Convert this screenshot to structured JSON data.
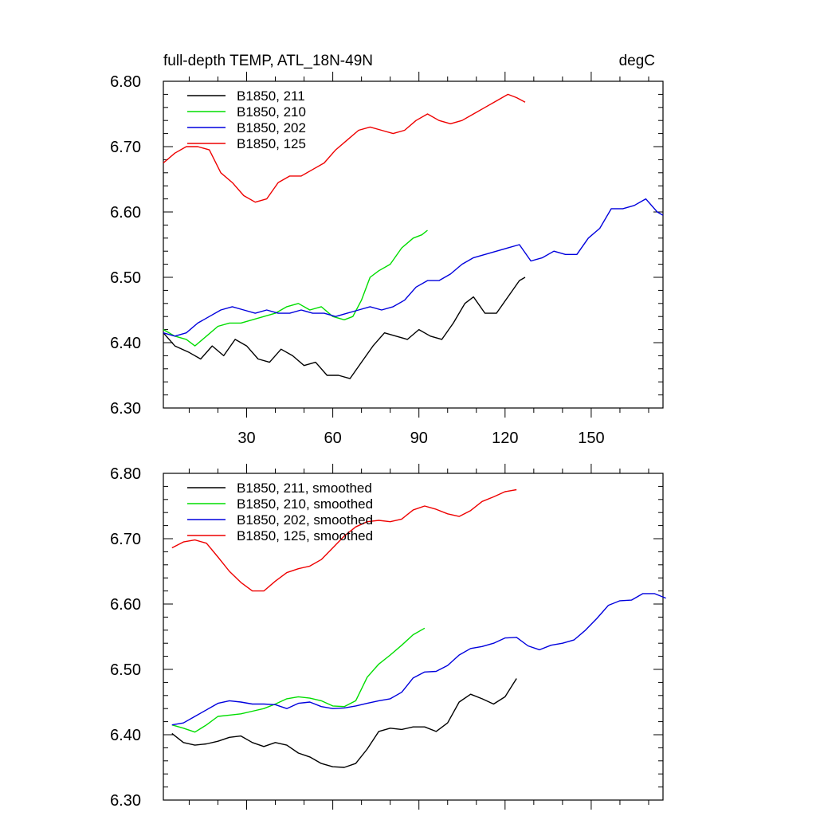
{
  "chart_data": [
    {
      "type": "line",
      "title": "full-depth TEMP, ATL_18N-49N",
      "units_label": "degC",
      "xlim": [
        1,
        175
      ],
      "ylim": [
        6.3,
        6.8
      ],
      "xticks": [
        30,
        60,
        90,
        120,
        150
      ],
      "xtick_labels": [
        "30",
        "60",
        "90",
        "120",
        "150"
      ],
      "yticks": [
        6.3,
        6.4,
        6.5,
        6.6,
        6.7,
        6.8
      ],
      "ytick_labels": [
        "6.30",
        "6.40",
        "6.50",
        "6.60",
        "6.70",
        "6.80"
      ],
      "legend": "top-left",
      "series": [
        {
          "name": "B1850, 211",
          "color": "#000000",
          "points": [
            [
              1,
              6.415
            ],
            [
              5,
              6.395
            ],
            [
              10,
              6.385
            ],
            [
              14,
              6.375
            ],
            [
              18,
              6.395
            ],
            [
              22,
              6.38
            ],
            [
              26,
              6.405
            ],
            [
              30,
              6.395
            ],
            [
              34,
              6.375
            ],
            [
              38,
              6.37
            ],
            [
              42,
              6.39
            ],
            [
              46,
              6.38
            ],
            [
              50,
              6.365
            ],
            [
              54,
              6.37
            ],
            [
              58,
              6.35
            ],
            [
              62,
              6.35
            ],
            [
              66,
              6.345
            ],
            [
              70,
              6.37
            ],
            [
              74,
              6.395
            ],
            [
              78,
              6.415
            ],
            [
              82,
              6.41
            ],
            [
              86,
              6.405
            ],
            [
              90,
              6.42
            ],
            [
              94,
              6.41
            ],
            [
              98,
              6.405
            ],
            [
              102,
              6.43
            ],
            [
              106,
              6.46
            ],
            [
              109,
              6.47
            ],
            [
              113,
              6.445
            ],
            [
              117,
              6.445
            ],
            [
              121,
              6.47
            ],
            [
              125,
              6.495
            ],
            [
              127,
              6.5
            ]
          ]
        },
        {
          "name": "B1850, 210",
          "color": "#00dd00",
          "points": [
            [
              1,
              6.42
            ],
            [
              5,
              6.41
            ],
            [
              9,
              6.405
            ],
            [
              12,
              6.395
            ],
            [
              16,
              6.41
            ],
            [
              20,
              6.425
            ],
            [
              24,
              6.43
            ],
            [
              28,
              6.43
            ],
            [
              32,
              6.435
            ],
            [
              36,
              6.44
            ],
            [
              40,
              6.445
            ],
            [
              44,
              6.455
            ],
            [
              48,
              6.46
            ],
            [
              52,
              6.45
            ],
            [
              56,
              6.455
            ],
            [
              60,
              6.44
            ],
            [
              64,
              6.435
            ],
            [
              67,
              6.44
            ],
            [
              70,
              6.465
            ],
            [
              73,
              6.5
            ],
            [
              76,
              6.51
            ],
            [
              80,
              6.52
            ],
            [
              84,
              6.545
            ],
            [
              88,
              6.56
            ],
            [
              91,
              6.565
            ],
            [
              93,
              6.572
            ]
          ]
        },
        {
          "name": "B1850, 202",
          "color": "#0000dd",
          "points": [
            [
              1,
              6.415
            ],
            [
              5,
              6.41
            ],
            [
              9,
              6.415
            ],
            [
              13,
              6.43
            ],
            [
              17,
              6.44
            ],
            [
              21,
              6.45
            ],
            [
              25,
              6.455
            ],
            [
              29,
              6.45
            ],
            [
              33,
              6.445
            ],
            [
              37,
              6.45
            ],
            [
              41,
              6.445
            ],
            [
              45,
              6.445
            ],
            [
              49,
              6.45
            ],
            [
              53,
              6.445
            ],
            [
              57,
              6.445
            ],
            [
              61,
              6.44
            ],
            [
              65,
              6.445
            ],
            [
              69,
              6.45
            ],
            [
              73,
              6.455
            ],
            [
              77,
              6.45
            ],
            [
              81,
              6.455
            ],
            [
              85,
              6.465
            ],
            [
              89,
              6.485
            ],
            [
              93,
              6.495
            ],
            [
              97,
              6.495
            ],
            [
              101,
              6.505
            ],
            [
              105,
              6.52
            ],
            [
              109,
              6.53
            ],
            [
              113,
              6.535
            ],
            [
              117,
              6.54
            ],
            [
              121,
              6.545
            ],
            [
              125,
              6.55
            ],
            [
              129,
              6.525
            ],
            [
              133,
              6.53
            ],
            [
              137,
              6.54
            ],
            [
              141,
              6.535
            ],
            [
              145,
              6.535
            ],
            [
              149,
              6.56
            ],
            [
              153,
              6.575
            ],
            [
              157,
              6.605
            ],
            [
              161,
              6.605
            ],
            [
              165,
              6.61
            ],
            [
              169,
              6.62
            ],
            [
              173,
              6.6
            ],
            [
              175,
              6.595
            ]
          ]
        },
        {
          "name": "B1850, 125",
          "color": "#ee0000",
          "points": [
            [
              1,
              6.675
            ],
            [
              5,
              6.69
            ],
            [
              9,
              6.7
            ],
            [
              13,
              6.7
            ],
            [
              17,
              6.695
            ],
            [
              21,
              6.66
            ],
            [
              25,
              6.645
            ],
            [
              29,
              6.625
            ],
            [
              33,
              6.615
            ],
            [
              37,
              6.62
            ],
            [
              41,
              6.645
            ],
            [
              45,
              6.655
            ],
            [
              49,
              6.655
            ],
            [
              53,
              6.665
            ],
            [
              57,
              6.675
            ],
            [
              61,
              6.695
            ],
            [
              65,
              6.71
            ],
            [
              69,
              6.725
            ],
            [
              73,
              6.73
            ],
            [
              77,
              6.725
            ],
            [
              81,
              6.72
            ],
            [
              85,
              6.725
            ],
            [
              89,
              6.74
            ],
            [
              93,
              6.75
            ],
            [
              97,
              6.74
            ],
            [
              101,
              6.735
            ],
            [
              105,
              6.74
            ],
            [
              109,
              6.75
            ],
            [
              113,
              6.76
            ],
            [
              117,
              6.77
            ],
            [
              121,
              6.78
            ],
            [
              124,
              6.775
            ],
            [
              127,
              6.768
            ]
          ]
        }
      ]
    },
    {
      "type": "line",
      "xlim": [
        1,
        175
      ],
      "ylim": [
        6.3,
        6.8
      ],
      "xticks": [
        30,
        60,
        90,
        120,
        150
      ],
      "yticks": [
        6.3,
        6.4,
        6.5,
        6.6,
        6.7,
        6.8
      ],
      "ytick_labels": [
        "6.30",
        "6.40",
        "6.50",
        "6.60",
        "6.70",
        "6.80"
      ],
      "legend": "top-left",
      "series": [
        {
          "name": "B1850, 211, smoothed",
          "color": "#000000",
          "points": [
            [
              4,
              6.402
            ],
            [
              8,
              6.388
            ],
            [
              12,
              6.384
            ],
            [
              16,
              6.386
            ],
            [
              20,
              6.39
            ],
            [
              24,
              6.396
            ],
            [
              28,
              6.398
            ],
            [
              32,
              6.388
            ],
            [
              36,
              6.382
            ],
            [
              40,
              6.388
            ],
            [
              44,
              6.384
            ],
            [
              48,
              6.372
            ],
            [
              52,
              6.366
            ],
            [
              56,
              6.356
            ],
            [
              60,
              6.351
            ],
            [
              64,
              6.35
            ],
            [
              68,
              6.356
            ],
            [
              72,
              6.378
            ],
            [
              76,
              6.405
            ],
            [
              80,
              6.41
            ],
            [
              84,
              6.408
            ],
            [
              88,
              6.412
            ],
            [
              92,
              6.412
            ],
            [
              96,
              6.405
            ],
            [
              100,
              6.418
            ],
            [
              104,
              6.45
            ],
            [
              108,
              6.462
            ],
            [
              112,
              6.455
            ],
            [
              116,
              6.447
            ],
            [
              120,
              6.458
            ],
            [
              124,
              6.486
            ]
          ]
        },
        {
          "name": "B1850, 210, smoothed",
          "color": "#00dd00",
          "points": [
            [
              4,
              6.415
            ],
            [
              8,
              6.41
            ],
            [
              12,
              6.404
            ],
            [
              16,
              6.415
            ],
            [
              20,
              6.428
            ],
            [
              24,
              6.43
            ],
            [
              28,
              6.432
            ],
            [
              32,
              6.436
            ],
            [
              36,
              6.44
            ],
            [
              40,
              6.447
            ],
            [
              44,
              6.455
            ],
            [
              48,
              6.458
            ],
            [
              52,
              6.456
            ],
            [
              56,
              6.452
            ],
            [
              60,
              6.444
            ],
            [
              64,
              6.443
            ],
            [
              68,
              6.452
            ],
            [
              72,
              6.488
            ],
            [
              76,
              6.508
            ],
            [
              80,
              6.522
            ],
            [
              84,
              6.537
            ],
            [
              88,
              6.553
            ],
            [
              92,
              6.563
            ]
          ]
        },
        {
          "name": "B1850, 202, smoothed",
          "color": "#0000dd",
          "points": [
            [
              4,
              6.415
            ],
            [
              8,
              6.418
            ],
            [
              12,
              6.428
            ],
            [
              16,
              6.438
            ],
            [
              20,
              6.448
            ],
            [
              24,
              6.452
            ],
            [
              28,
              6.45
            ],
            [
              32,
              6.447
            ],
            [
              36,
              6.447
            ],
            [
              40,
              6.446
            ],
            [
              44,
              6.44
            ],
            [
              48,
              6.448
            ],
            [
              52,
              6.45
            ],
            [
              56,
              6.443
            ],
            [
              60,
              6.44
            ],
            [
              64,
              6.441
            ],
            [
              68,
              6.444
            ],
            [
              72,
              6.448
            ],
            [
              76,
              6.452
            ],
            [
              80,
              6.455
            ],
            [
              84,
              6.465
            ],
            [
              88,
              6.487
            ],
            [
              92,
              6.496
            ],
            [
              96,
              6.497
            ],
            [
              100,
              6.506
            ],
            [
              104,
              6.522
            ],
            [
              108,
              6.532
            ],
            [
              112,
              6.535
            ],
            [
              116,
              6.54
            ],
            [
              120,
              6.548
            ],
            [
              124,
              6.549
            ],
            [
              128,
              6.536
            ],
            [
              132,
              6.53
            ],
            [
              136,
              6.537
            ],
            [
              140,
              6.54
            ],
            [
              144,
              6.545
            ],
            [
              148,
              6.56
            ],
            [
              152,
              6.578
            ],
            [
              156,
              6.598
            ],
            [
              160,
              6.605
            ],
            [
              164,
              6.606
            ],
            [
              168,
              6.616
            ],
            [
              172,
              6.616
            ],
            [
              176,
              6.609
            ]
          ]
        },
        {
          "name": "B1850, 125, smoothed",
          "color": "#ee0000",
          "points": [
            [
              4,
              6.686
            ],
            [
              8,
              6.695
            ],
            [
              12,
              6.698
            ],
            [
              16,
              6.693
            ],
            [
              20,
              6.672
            ],
            [
              24,
              6.65
            ],
            [
              28,
              6.633
            ],
            [
              32,
              6.62
            ],
            [
              36,
              6.62
            ],
            [
              40,
              6.635
            ],
            [
              44,
              6.648
            ],
            [
              48,
              6.654
            ],
            [
              52,
              6.658
            ],
            [
              56,
              6.668
            ],
            [
              60,
              6.686
            ],
            [
              64,
              6.704
            ],
            [
              68,
              6.718
            ],
            [
              72,
              6.726
            ],
            [
              76,
              6.728
            ],
            [
              80,
              6.726
            ],
            [
              84,
              6.73
            ],
            [
              88,
              6.744
            ],
            [
              92,
              6.75
            ],
            [
              96,
              6.745
            ],
            [
              100,
              6.738
            ],
            [
              104,
              6.734
            ],
            [
              108,
              6.743
            ],
            [
              112,
              6.757
            ],
            [
              116,
              6.764
            ],
            [
              120,
              6.772
            ],
            [
              124,
              6.775
            ]
          ]
        }
      ]
    }
  ]
}
